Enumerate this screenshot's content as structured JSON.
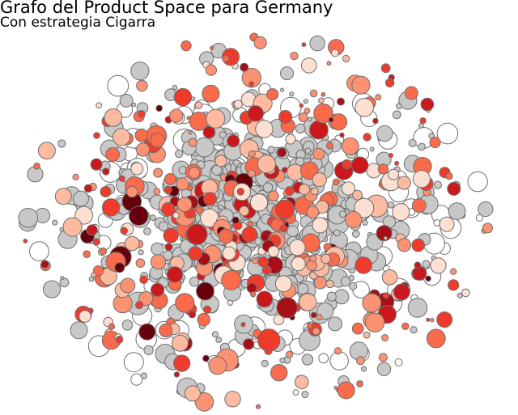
{
  "title": "Grafo del Product Space para Germany",
  "subtitle": "Con estrategia Cigarra",
  "palette": {
    "neutral_fill": "#c8c8c8",
    "empty_fill": "#ffffff",
    "stroke": "#6e6e6e",
    "reds": [
      "#fde0d2",
      "#fcbba1",
      "#fc9272",
      "#fb6a4a",
      "#ef3b2c",
      "#cb181d",
      "#a50f15",
      "#67000d"
    ]
  },
  "node_mix": {
    "neutral": 0.56,
    "empty": 0.07,
    "red": 0.37
  }
}
